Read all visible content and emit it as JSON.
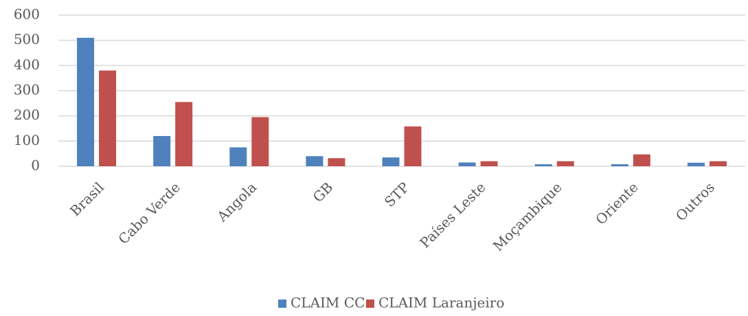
{
  "chart_data": {
    "type": "bar",
    "categories": [
      "Brasil",
      "Cabo Verde",
      "Angola",
      "GB",
      "STP",
      "Países Leste",
      "Moçambique",
      "Oriente",
      "Outros"
    ],
    "series": [
      {
        "name": "CLAIM CC",
        "color": "#4f81bd",
        "values": [
          510,
          120,
          75,
          40,
          35,
          15,
          8,
          8,
          14
        ]
      },
      {
        "name": "CLAIM Laranjeiro",
        "color": "#c0504d",
        "values": [
          380,
          255,
          195,
          32,
          158,
          20,
          20,
          47,
          20
        ]
      }
    ],
    "ylim": [
      0,
      600
    ],
    "yticks": [
      0,
      100,
      200,
      300,
      400,
      500,
      600
    ],
    "grid": true,
    "legend": "bottom"
  }
}
